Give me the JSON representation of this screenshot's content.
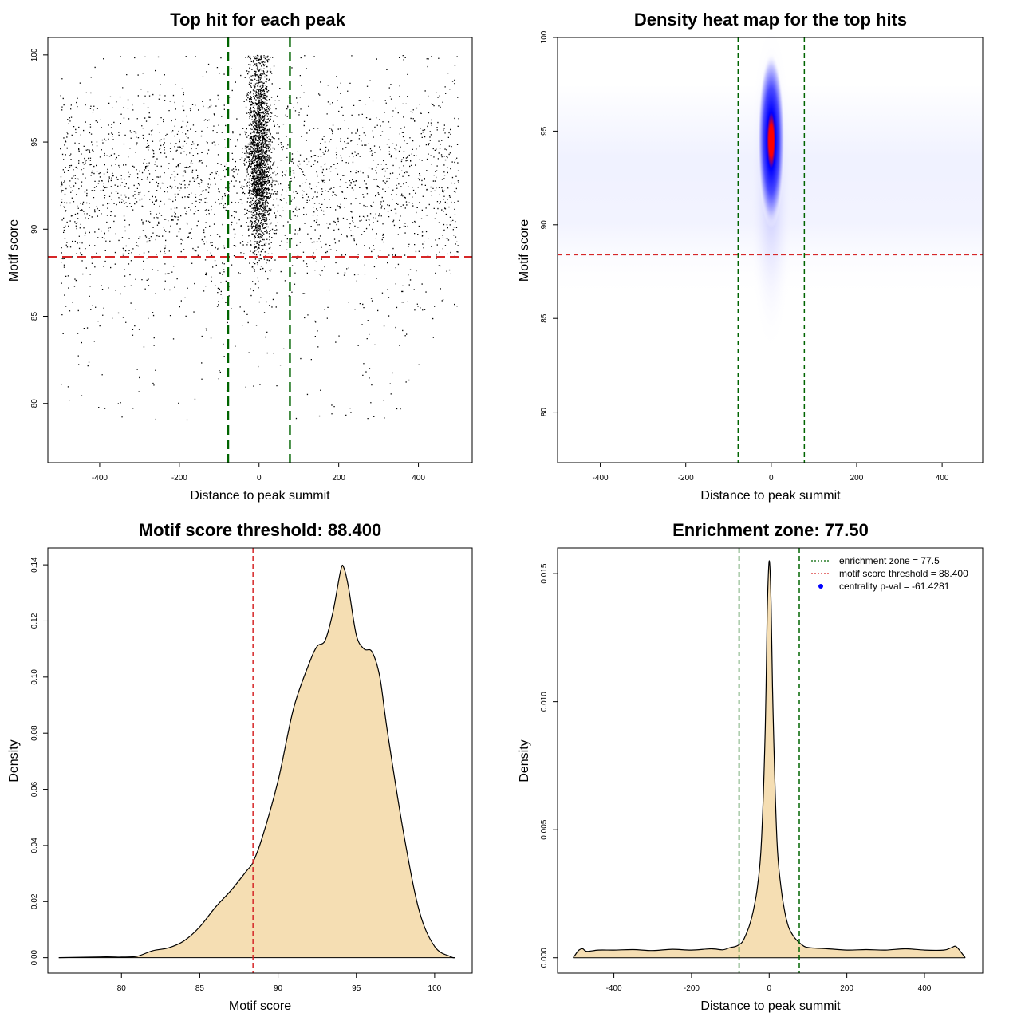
{
  "chart_data": [
    {
      "type": "scatter",
      "title": "Top hit for each peak",
      "xlabel": "Distance to peak summit",
      "ylabel": "Motif score",
      "xlim": [
        -530,
        535
      ],
      "ylim": [
        76.6,
        101
      ],
      "xticks": [
        -400,
        -200,
        0,
        200,
        400
      ],
      "yticks": [
        80,
        85,
        90,
        95,
        100
      ],
      "hline": {
        "y": 88.4,
        "color": "#d62728",
        "style": "dashed"
      },
      "vlines": {
        "x": [
          -77.5,
          77.5
        ],
        "color": "#006400",
        "style": "dashed"
      },
      "points_description_stats": {
        "n_background": 2600,
        "n_central": 3200,
        "x_range": [
          -500,
          500
        ],
        "y_range": [
          77.3,
          100
        ]
      }
    },
    {
      "type": "heatmap",
      "title": "Density heat map for the top hits",
      "xlabel": "Distance to peak summit",
      "ylabel": "Motif score",
      "xlim": [
        -500,
        495
      ],
      "ylim": [
        77.3,
        100
      ],
      "xticks": [
        -400,
        -200,
        0,
        200,
        400
      ],
      "yticks": [
        80,
        85,
        90,
        95,
        100
      ],
      "hotspot": {
        "x": 0,
        "y": 94.5
      },
      "colors": [
        "#ffffff",
        "#0000ff",
        "#ff0000"
      ],
      "hline": {
        "y": 88.4,
        "color": "#d62728",
        "style": "dashed"
      },
      "vlines": {
        "x": [
          -77.5,
          77.5
        ],
        "color": "#006400",
        "style": "dashed"
      }
    },
    {
      "type": "area",
      "title": "Motif score threshold: 88.400",
      "xlabel": "Motif score",
      "ylabel": "Density",
      "xlim": [
        75.3,
        102.4
      ],
      "ylim": [
        -0.0055,
        0.146
      ],
      "xticks": [
        80,
        85,
        90,
        95,
        100
      ],
      "yticks": [
        0.0,
        0.02,
        0.04,
        0.06,
        0.08,
        0.1,
        0.12,
        0.14
      ],
      "ytick_labels": [
        "0.00",
        "0.02",
        "0.04",
        "0.06",
        "0.08",
        "0.10",
        "0.12",
        "0.14"
      ],
      "fill": "#f5deb3",
      "x": [
        76,
        79,
        80,
        81,
        82,
        83,
        84,
        85,
        86,
        87,
        88,
        88.4,
        89,
        90,
        91,
        92,
        92.5,
        93,
        93.5,
        94,
        94.2,
        94.5,
        95,
        95.5,
        96,
        96.5,
        97,
        98,
        99,
        100,
        101,
        101.3
      ],
      "y": [
        0,
        0.0003,
        0.0002,
        0.0005,
        0.0025,
        0.0035,
        0.006,
        0.011,
        0.018,
        0.024,
        0.031,
        0.034,
        0.043,
        0.063,
        0.089,
        0.105,
        0.111,
        0.113,
        0.123,
        0.138,
        0.139,
        0.132,
        0.115,
        0.11,
        0.109,
        0.1,
        0.08,
        0.045,
        0.017,
        0.004,
        0.0004,
        0
      ],
      "vline": {
        "x": 88.4,
        "color": "#d62728",
        "style": "dashed"
      }
    },
    {
      "type": "area",
      "title": "Enrichment zone: 77.50",
      "xlabel": "Distance to peak summit",
      "ylabel": "Density",
      "xlim": [
        -545,
        550
      ],
      "ylim": [
        -0.0006,
        0.016
      ],
      "xticks": [
        -400,
        -200,
        0,
        200,
        400
      ],
      "yticks": [
        0.0,
        0.005,
        0.01,
        0.015
      ],
      "ytick_labels": [
        "0.000",
        "0.005",
        "0.010",
        "0.015"
      ],
      "fill": "#f5deb3",
      "x": [
        -505,
        -500,
        -490,
        -480,
        -470,
        -440,
        -400,
        -350,
        -300,
        -250,
        -200,
        -150,
        -120,
        -100,
        -85,
        -70,
        -60,
        -50,
        -40,
        -30,
        -20,
        -10,
        -5,
        0,
        5,
        10,
        20,
        30,
        40,
        50,
        60,
        70,
        85,
        100,
        150,
        200,
        250,
        300,
        350,
        400,
        450,
        470,
        480,
        490,
        500,
        505
      ],
      "y": [
        0,
        0.0001,
        0.0003,
        0.00035,
        0.00025,
        0.0003,
        0.0003,
        0.00032,
        0.00028,
        0.00033,
        0.0003,
        0.00035,
        0.00031,
        0.0004,
        0.00045,
        0.0006,
        0.0009,
        0.0013,
        0.0019,
        0.0028,
        0.0045,
        0.009,
        0.0135,
        0.0155,
        0.0138,
        0.0095,
        0.0046,
        0.0028,
        0.0018,
        0.0012,
        0.0009,
        0.0007,
        0.0005,
        0.0004,
        0.00035,
        0.0003,
        0.00032,
        0.0003,
        0.00035,
        0.0003,
        0.0003,
        0.0004,
        0.00045,
        0.0003,
        0.0001,
        0
      ],
      "vlines": {
        "x": [
          -77.5,
          77.5
        ],
        "color": "#006400",
        "style": "dashed"
      },
      "legend": {
        "position": "top-right",
        "entries": [
          {
            "label": "enrichment zone = 77.5",
            "color": "#006400",
            "symbol": "dotted-line"
          },
          {
            "label": "motif score threshold = 88.400",
            "color": "#d62728",
            "symbol": "dotted-line"
          },
          {
            "label": "centrality p-val = -61.4281",
            "color": "#0000ff",
            "symbol": "dot"
          }
        ]
      }
    }
  ]
}
